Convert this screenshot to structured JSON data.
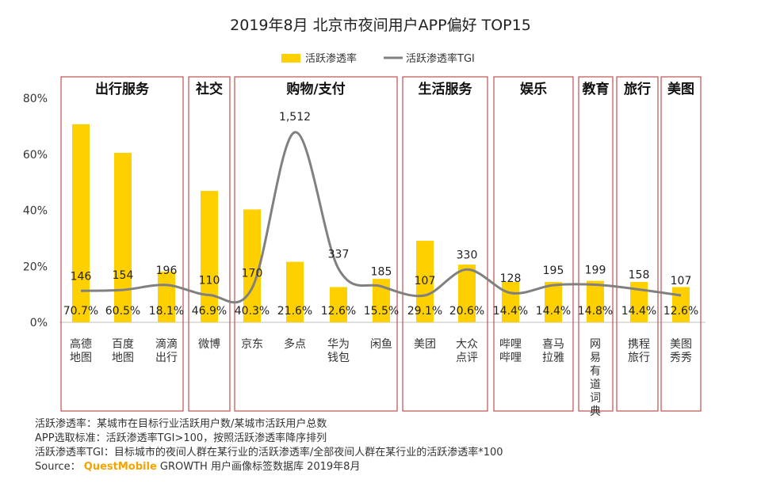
{
  "title": "2019年8月 北京市夜间用户APP偏好 TOP15",
  "colors": {
    "bar": "#FFD000",
    "line": "#808080",
    "group_border": "#C0504D",
    "brand": "#F5A300"
  },
  "chart_data": {
    "type": "bar",
    "title": "2019年8月 北京市夜间用户APP偏好 TOP15",
    "categories": [
      "高德地图",
      "百度地图",
      "滴滴出行",
      "微博",
      "京东",
      "多点",
      "华为钱包",
      "闲鱼",
      "美团",
      "大众点评",
      "哔哩哔哩",
      "喜马拉雅",
      "网易有道词典",
      "携程旅行",
      "美图秀秀"
    ],
    "groups": [
      {
        "name": "出行服务",
        "count": 3
      },
      {
        "name": "社交",
        "count": 1
      },
      {
        "name": "购物/支付",
        "count": 4
      },
      {
        "name": "生活服务",
        "count": 2
      },
      {
        "name": "娱乐",
        "count": 2
      },
      {
        "name": "教育",
        "count": 1
      },
      {
        "name": "旅行",
        "count": 1
      },
      {
        "name": "美图",
        "count": 1
      }
    ],
    "series": [
      {
        "name": "活跃渗透率",
        "type": "bar",
        "values": [
          70.7,
          60.5,
          18.1,
          46.9,
          40.3,
          21.6,
          12.6,
          15.5,
          29.1,
          20.6,
          14.4,
          14.4,
          14.8,
          14.4,
          12.6
        ],
        "labels": [
          "70.7%",
          "60.5%",
          "18.1%",
          "46.9%",
          "40.3%",
          "21.6%",
          "12.6%",
          "15.5%",
          "29.1%",
          "20.6%",
          "14.4%",
          "14.4%",
          "14.8%",
          "14.4%",
          "12.6%"
        ]
      },
      {
        "name": "活跃渗透率TGI",
        "type": "line",
        "values": [
          146,
          154,
          196,
          110,
          170,
          1512,
          337,
          185,
          107,
          330,
          128,
          195,
          199,
          158,
          107
        ],
        "labels": [
          "146",
          "154",
          "196",
          "110",
          "170",
          "1,512",
          "337",
          "185",
          "107",
          "330",
          "128",
          "195",
          "199",
          "158",
          "107"
        ]
      }
    ],
    "y_ticks": [
      "0%",
      "20%",
      "40%",
      "60%",
      "80%"
    ],
    "ylim": [
      0,
      80
    ],
    "legend": [
      "活跃渗透率",
      "活跃渗透率TGI"
    ],
    "legend_position": "top-center"
  },
  "notes": [
    "活跃渗透率：某城市在目标行业活跃用户数/某城市活跃用户总数",
    "APP选取标准：活跃渗透率TGI>100，按照活跃渗透率降序排列",
    "活跃渗透率TGI：目标城市的夜间人群在某行业的活跃渗透率/全部夜间人群在某行业的活跃渗透率*100"
  ],
  "source": {
    "prefix": "Source：",
    "brand": "QuestMobile",
    "suffix": " GROWTH 用户画像标签数据库 2019年8月"
  }
}
